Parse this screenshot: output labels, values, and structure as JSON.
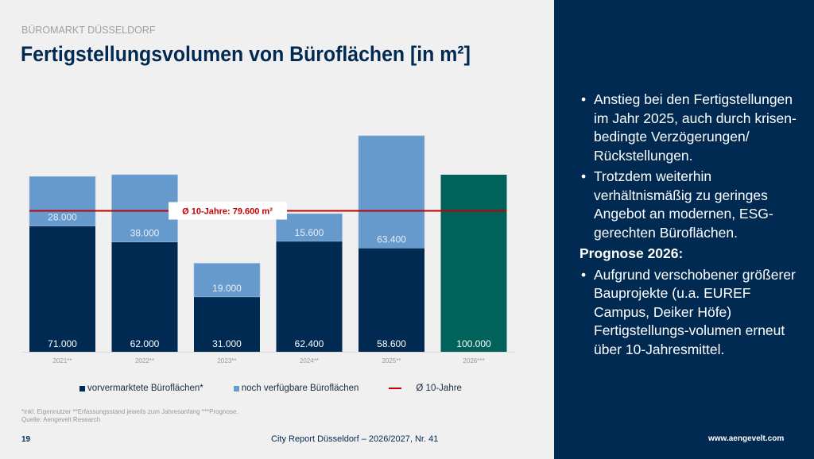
{
  "header": {
    "kicker": "BÜROMARKT DÜSSELDORF",
    "title": "Fertigstellungsvolumen von Büroflächen [in m²]"
  },
  "colors": {
    "navy": "#002a52",
    "light_blue": "#6699cc",
    "teal": "#00625a",
    "red": "#c00000"
  },
  "chart_data": {
    "type": "bar",
    "stacked": true,
    "categories": [
      "2021**",
      "2022**",
      "2023**",
      "2024**",
      "2025**",
      "2026***"
    ],
    "series": [
      {
        "name": "vorvermarktete Büroflächen*",
        "values": [
          71000,
          62000,
          31000,
          62400,
          58600,
          null
        ],
        "labels": [
          "71.000",
          "62.000",
          "31.000",
          "62.400",
          "58.600",
          ""
        ]
      },
      {
        "name": "noch verfügbare Büroflächen",
        "values": [
          28000,
          38000,
          19000,
          15600,
          63400,
          null
        ],
        "labels": [
          "28.000",
          "38.000",
          "19.000",
          "15.600",
          "63.400",
          ""
        ]
      },
      {
        "name": "Prognose",
        "values": [
          null,
          null,
          null,
          null,
          null,
          100000
        ],
        "labels": [
          "",
          "",
          "",
          "",
          "",
          "100.000"
        ]
      }
    ],
    "reference_line": {
      "name": "Ø 10-Jahre",
      "value": 79600,
      "label": "Ø 10-Jahre: 79.600 m²"
    },
    "ylim": [
      0,
      125000
    ],
    "xlabel": "",
    "ylabel": "",
    "legend": "bottom",
    "grid": false
  },
  "legend": {
    "items": [
      "vorvermarktete Büroflächen*",
      "noch verfügbare Büroflächen",
      "Ø 10-Jahre"
    ]
  },
  "footnote": {
    "line1": "*inkl. Eigennutzer **Erfassungsstand jeweils zum Jahresanfang ***Prognose.",
    "line2": "Quelle: Aengevelt Research"
  },
  "footer": {
    "page": "19",
    "report": "City Report Düsseldorf – 2026/2027, Nr. 41",
    "website": "www.aengevelt.com"
  },
  "sidebar": {
    "bullets": [
      "Anstieg bei den Fertigstellungen im Jahr 2025, auch durch krisen-bedingte Verzögerungen/ Rückstellungen.",
      "Trotzdem weiterhin verhältnismäßig zu geringes Angebot an modernen, ESG-gerechten Büroflächen."
    ],
    "heading": "Prognose 2026:",
    "bullets2": [
      "Aufgrund verschobener größerer Bauprojekte (u.a. EUREF Campus, Deiker Höfe) Fertigstellungs-volumen erneut über 10-Jahresmittel."
    ]
  }
}
